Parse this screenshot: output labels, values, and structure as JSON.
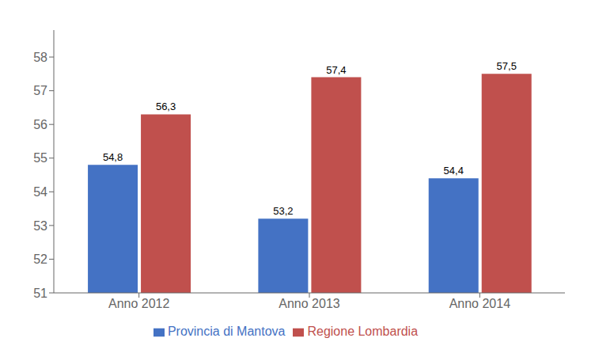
{
  "chart_data": {
    "type": "bar",
    "categories": [
      "Anno 2012",
      "Anno 2013",
      "Anno 2014"
    ],
    "series": [
      {
        "name": "Provincia di Mantova",
        "color": "#4472C4",
        "values": [
          54.8,
          53.2,
          54.4
        ],
        "value_labels": [
          "54,8",
          "53,2",
          "54,4"
        ]
      },
      {
        "name": "Regione Lombardia",
        "color": "#C0504D",
        "values": [
          56.3,
          57.4,
          57.5
        ],
        "value_labels": [
          "56,3",
          "57,4",
          "57,5"
        ]
      }
    ],
    "ylim": [
      51,
      58.8
    ],
    "yticks": [
      51,
      52,
      53,
      54,
      55,
      56,
      57,
      58
    ],
    "grid": false,
    "legend": "bottom",
    "data_labels": true
  }
}
